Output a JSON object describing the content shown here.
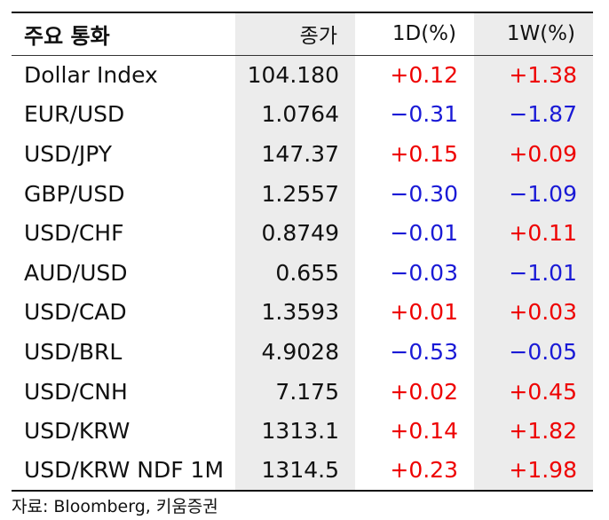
{
  "headers": [
    "주요 통화",
    "종가",
    "1D(%)",
    "1W(%)"
  ],
  "rows": [
    {
      "name": "Dollar Index",
      "close": "104.180",
      "d1": "+0.12",
      "w1": "+1.38"
    },
    {
      "name": "EUR/USD",
      "close": "1.0764",
      "d1": "−0.31",
      "w1": "−1.87"
    },
    {
      "name": "USD/JPY",
      "close": "147.37",
      "d1": "+0.15",
      "w1": "+0.09"
    },
    {
      "name": "GBP/USD",
      "close": "1.2557",
      "d1": "−0.30",
      "w1": "−1.09"
    },
    {
      "name": "USD/CHF",
      "close": "0.8749",
      "d1": "−0.01",
      "w1": "+0.11"
    },
    {
      "name": "AUD/USD",
      "close": "0.655",
      "d1": "−0.03",
      "w1": "−1.01"
    },
    {
      "name": "USD/CAD",
      "close": "1.3593",
      "d1": "+0.01",
      "w1": "+0.03"
    },
    {
      "name": "USD/BRL",
      "close": "4.9028",
      "d1": "−0.53",
      "w1": "−0.05"
    },
    {
      "name": "USD/CNH",
      "close": "7.175",
      "d1": "+0.02",
      "w1": "+0.45"
    },
    {
      "name": "USD/KRW",
      "close": "1313.1",
      "d1": "+0.14",
      "w1": "+1.82"
    },
    {
      "name": "USD/KRW NDF 1M",
      "close": "1314.5",
      "d1": "+0.23",
      "w1": "+1.98"
    }
  ],
  "source": "자료: Bloomberg, 키움증권",
  "colors": {
    "positive": "#ee0000",
    "negative": "#1a1ad6",
    "shade": "#ececec"
  }
}
